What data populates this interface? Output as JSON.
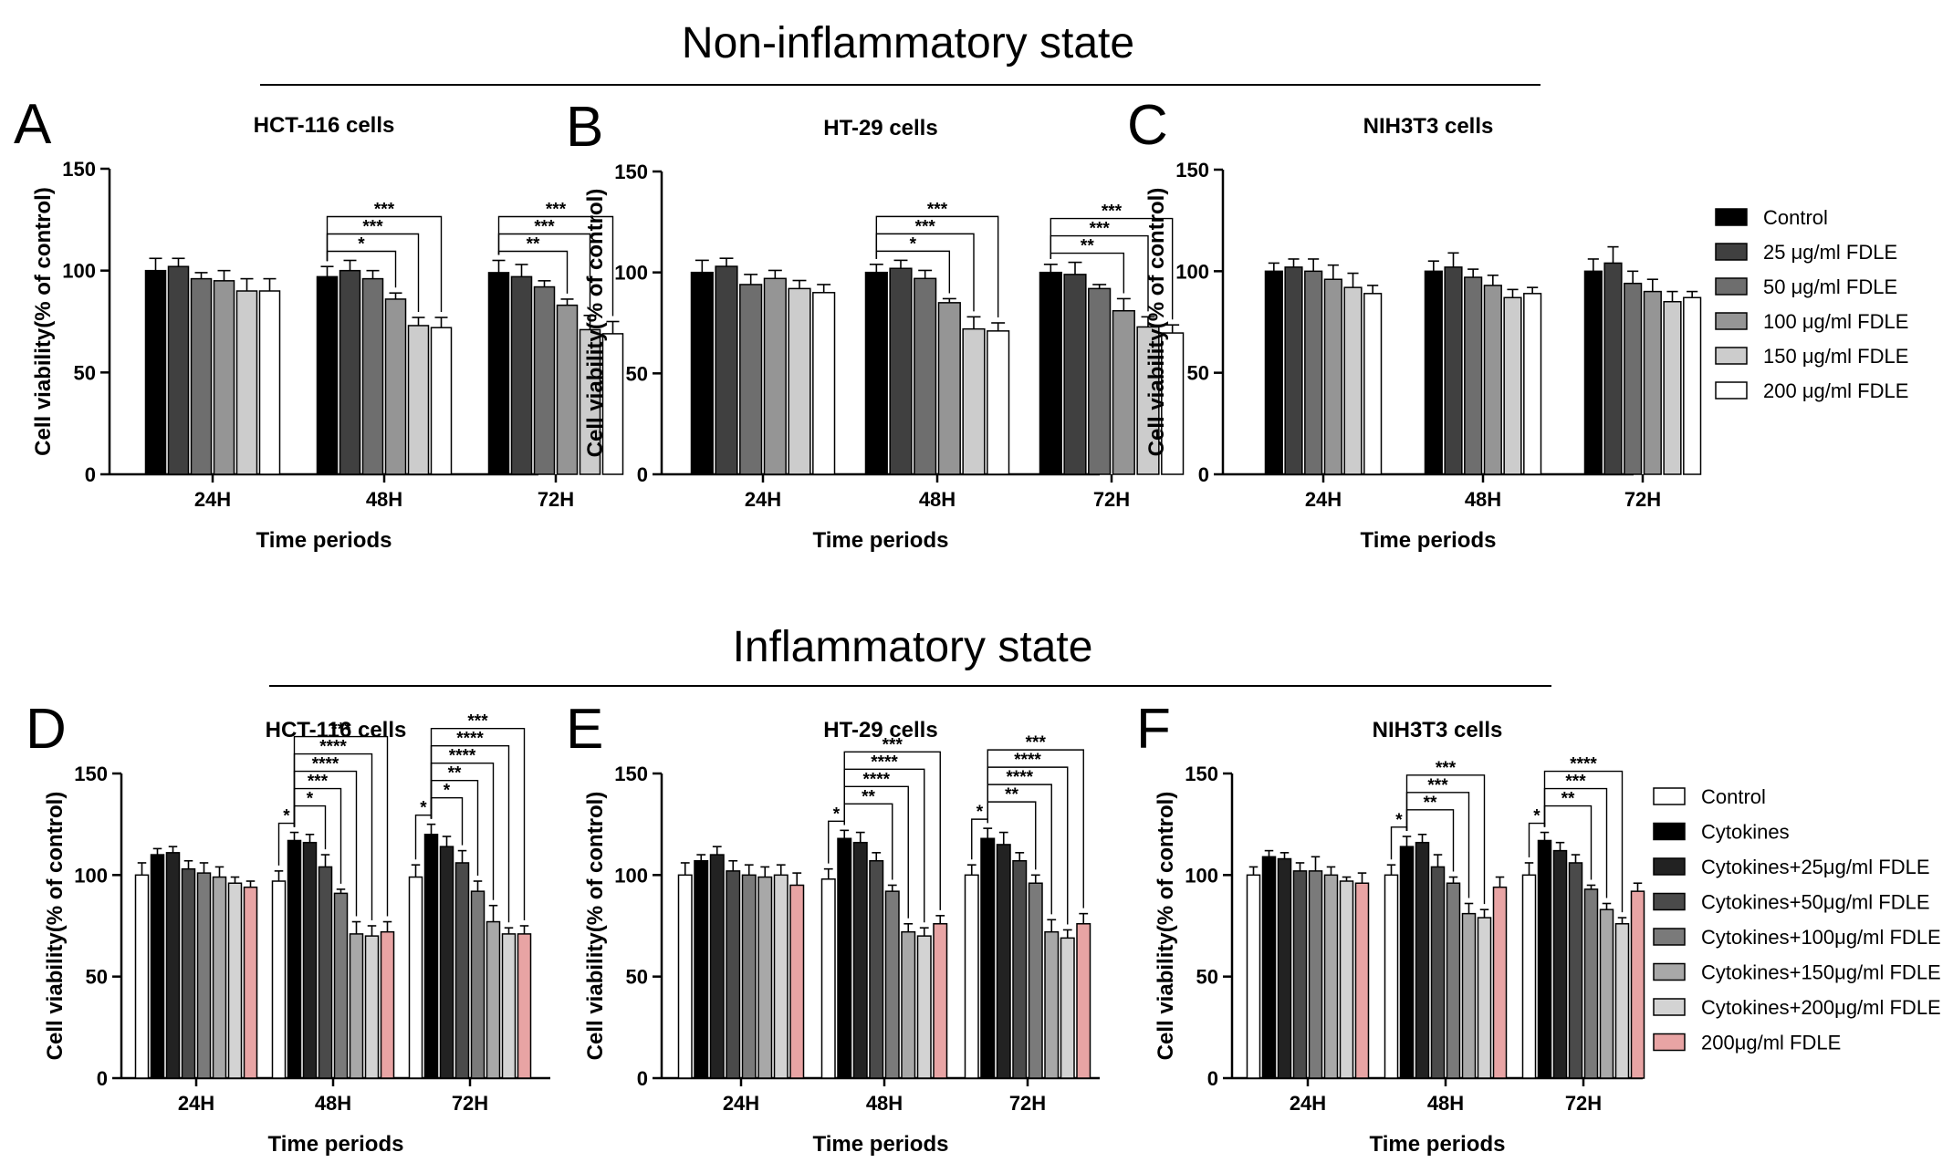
{
  "sections": [
    {
      "title": "Non-inflammatory state"
    },
    {
      "title": "Inflammatory state"
    }
  ],
  "legends": [
    {
      "entries": [
        {
          "label": "Control",
          "color": "#000000"
        },
        {
          "label": "25 μg/ml FDLE",
          "color": "#404040"
        },
        {
          "label": "50 μg/ml FDLE",
          "color": "#6e6e6e"
        },
        {
          "label": "100 μg/ml FDLE",
          "color": "#959595"
        },
        {
          "label": "150 μg/ml FDLE",
          "color": "#cccccc"
        },
        {
          "label": "200 μg/ml FDLE",
          "color": "#ffffff"
        }
      ]
    },
    {
      "entries": [
        {
          "label": "Control",
          "color": "#ffffff"
        },
        {
          "label": "Cytokines",
          "color": "#000000"
        },
        {
          "label": "Cytokines+25μg/ml FDLE",
          "color": "#222222"
        },
        {
          "label": "Cytokines+50μg/ml FDLE",
          "color": "#4a4a4a"
        },
        {
          "label": "Cytokines+100μg/ml FDLE",
          "color": "#7a7a7a"
        },
        {
          "label": "Cytokines+150μg/ml FDLE",
          "color": "#a8a8a8"
        },
        {
          "label": "Cytokines+200μg/ml FDLE",
          "color": "#d3d3d3"
        },
        {
          "label": "200μg/ml FDLE",
          "color": "#e8a4a4"
        }
      ]
    }
  ],
  "chart_data": [
    {
      "type": "bar",
      "letter": "A",
      "title": "HCT-116 cells",
      "xlabel": "Time periods",
      "ylabel": "Cell viability(% of control)",
      "ylim": [
        0,
        150
      ],
      "yticks": [
        0,
        50,
        100,
        150
      ],
      "categories": [
        "24H",
        "48H",
        "72H"
      ],
      "series": [
        {
          "name": "Control",
          "values": [
            100,
            97,
            99
          ],
          "errors": [
            6,
            5,
            6
          ]
        },
        {
          "name": "25 μg/ml FDLE",
          "values": [
            102,
            100,
            97
          ],
          "errors": [
            4,
            5,
            6
          ]
        },
        {
          "name": "50 μg/ml FDLE",
          "values": [
            96,
            96,
            92
          ],
          "errors": [
            3,
            4,
            3
          ]
        },
        {
          "name": "100 μg/ml FDLE",
          "values": [
            95,
            86,
            83
          ],
          "errors": [
            5,
            3,
            3
          ]
        },
        {
          "name": "150 μg/ml FDLE",
          "values": [
            90,
            73,
            71
          ],
          "errors": [
            6,
            4,
            7
          ]
        },
        {
          "name": "200 μg/ml FDLE",
          "values": [
            90,
            72,
            69
          ],
          "errors": [
            6,
            5,
            6
          ]
        }
      ],
      "significance": [
        {
          "group": 1,
          "to": 3,
          "label": "*"
        },
        {
          "group": 1,
          "to": 4,
          "label": "***"
        },
        {
          "group": 1,
          "to": 5,
          "label": "***"
        },
        {
          "group": 2,
          "to": 3,
          "label": "**"
        },
        {
          "group": 2,
          "to": 4,
          "label": "***"
        },
        {
          "group": 2,
          "to": 5,
          "label": "***"
        }
      ]
    },
    {
      "type": "bar",
      "letter": "B",
      "title": "HT-29 cells",
      "xlabel": "Time periods",
      "ylabel": "Cell viability(% of control)",
      "ylim": [
        0,
        150
      ],
      "yticks": [
        0,
        50,
        100,
        150
      ],
      "categories": [
        "24H",
        "48H",
        "72H"
      ],
      "series": [
        {
          "name": "Control",
          "values": [
            100,
            100,
            100
          ],
          "errors": [
            6,
            4,
            4
          ]
        },
        {
          "name": "25 μg/ml FDLE",
          "values": [
            103,
            102,
            99
          ],
          "errors": [
            4,
            4,
            6
          ]
        },
        {
          "name": "50 μg/ml FDLE",
          "values": [
            94,
            97,
            92
          ],
          "errors": [
            5,
            4,
            2
          ]
        },
        {
          "name": "100 μg/ml FDLE",
          "values": [
            97,
            85,
            81
          ],
          "errors": [
            4,
            2,
            6
          ]
        },
        {
          "name": "150 μg/ml FDLE",
          "values": [
            92,
            72,
            73
          ],
          "errors": [
            4,
            6,
            5
          ]
        },
        {
          "name": "200 μg/ml FDLE",
          "values": [
            90,
            71,
            70
          ],
          "errors": [
            4,
            4,
            4
          ]
        }
      ],
      "significance": [
        {
          "group": 1,
          "to": 3,
          "label": "*"
        },
        {
          "group": 1,
          "to": 4,
          "label": "***"
        },
        {
          "group": 1,
          "to": 5,
          "label": "***"
        },
        {
          "group": 2,
          "to": 3,
          "label": "**"
        },
        {
          "group": 2,
          "to": 4,
          "label": "***"
        },
        {
          "group": 2,
          "to": 5,
          "label": "***"
        }
      ]
    },
    {
      "type": "bar",
      "letter": "C",
      "title": "NIH3T3 cells",
      "xlabel": "Time periods",
      "ylabel": "Cell viability(% of control)",
      "ylim": [
        0,
        150
      ],
      "yticks": [
        0,
        50,
        100,
        150
      ],
      "categories": [
        "24H",
        "48H",
        "72H"
      ],
      "legend": 0,
      "legend_placement": "right",
      "series": [
        {
          "name": "Control",
          "values": [
            100,
            100,
            100
          ],
          "errors": [
            4,
            5,
            6
          ]
        },
        {
          "name": "25 μg/ml FDLE",
          "values": [
            102,
            102,
            104
          ],
          "errors": [
            4,
            7,
            8
          ]
        },
        {
          "name": "50 μg/ml FDLE",
          "values": [
            100,
            97,
            94
          ],
          "errors": [
            6,
            4,
            6
          ]
        },
        {
          "name": "100 μg/ml FDLE",
          "values": [
            96,
            93,
            90
          ],
          "errors": [
            7,
            5,
            6
          ]
        },
        {
          "name": "150 μg/ml FDLE",
          "values": [
            92,
            87,
            85
          ],
          "errors": [
            7,
            4,
            5
          ]
        },
        {
          "name": "200 μg/ml FDLE",
          "values": [
            89,
            89,
            87
          ],
          "errors": [
            4,
            3,
            3
          ]
        }
      ],
      "significance": []
    },
    {
      "type": "bar",
      "letter": "D",
      "title": "HCT-116 cells",
      "xlabel": "Time periods",
      "ylabel": "Cell viability(% of control)",
      "ylim": [
        0,
        150
      ],
      "yticks": [
        0,
        50,
        100,
        150
      ],
      "categories": [
        "24H",
        "48H",
        "72H"
      ],
      "series": [
        {
          "name": "Control",
          "values": [
            100,
            97,
            99
          ],
          "errors": [
            6,
            5,
            6
          ]
        },
        {
          "name": "Cytokines",
          "values": [
            110,
            117,
            120
          ],
          "errors": [
            3,
            4,
            5
          ]
        },
        {
          "name": "Cytokines+25μg/ml FDLE",
          "values": [
            111,
            116,
            114
          ],
          "errors": [
            3,
            4,
            5
          ]
        },
        {
          "name": "Cytokines+50μg/ml FDLE",
          "values": [
            103,
            104,
            106
          ],
          "errors": [
            4,
            6,
            6
          ]
        },
        {
          "name": "Cytokines+100μg/ml FDLE",
          "values": [
            101,
            91,
            92
          ],
          "errors": [
            5,
            2,
            5
          ]
        },
        {
          "name": "Cytokines+150μg/ml FDLE",
          "values": [
            99,
            71,
            77
          ],
          "errors": [
            5,
            6,
            8
          ]
        },
        {
          "name": "Cytokines+200μg/ml FDLE",
          "values": [
            96,
            70,
            71
          ],
          "errors": [
            3,
            5,
            3
          ]
        },
        {
          "name": "200μg/ml FDLE",
          "values": [
            94,
            72,
            71
          ],
          "errors": [
            3,
            5,
            4
          ]
        }
      ],
      "significance": [
        {
          "group": 1,
          "from": 0,
          "to": 1,
          "label": "*"
        },
        {
          "group": 1,
          "from": 1,
          "to": 3,
          "label": "*"
        },
        {
          "group": 1,
          "from": 1,
          "to": 4,
          "label": "***"
        },
        {
          "group": 1,
          "from": 1,
          "to": 5,
          "label": "****"
        },
        {
          "group": 1,
          "from": 1,
          "to": 6,
          "label": "****"
        },
        {
          "group": 1,
          "from": 1,
          "to": 7,
          "label": "***"
        },
        {
          "group": 2,
          "from": 0,
          "to": 1,
          "label": "*"
        },
        {
          "group": 2,
          "from": 1,
          "to": 3,
          "label": "*"
        },
        {
          "group": 2,
          "from": 1,
          "to": 4,
          "label": "**"
        },
        {
          "group": 2,
          "from": 1,
          "to": 5,
          "label": "****"
        },
        {
          "group": 2,
          "from": 1,
          "to": 6,
          "label": "****"
        },
        {
          "group": 2,
          "from": 1,
          "to": 7,
          "label": "***"
        }
      ]
    },
    {
      "type": "bar",
      "letter": "E",
      "title": "HT-29 cells",
      "xlabel": "Time periods",
      "ylabel": "Cell viability(% of control)",
      "ylim": [
        0,
        150
      ],
      "yticks": [
        0,
        50,
        100,
        150
      ],
      "categories": [
        "24H",
        "48H",
        "72H"
      ],
      "series": [
        {
          "name": "Control",
          "values": [
            100,
            98,
            100
          ],
          "errors": [
            6,
            5,
            5
          ]
        },
        {
          "name": "Cytokines",
          "values": [
            107,
            118,
            118
          ],
          "errors": [
            3,
            4,
            5
          ]
        },
        {
          "name": "Cytokines+25μg/ml FDLE",
          "values": [
            110,
            116,
            115
          ],
          "errors": [
            4,
            5,
            6
          ]
        },
        {
          "name": "Cytokines+50μg/ml FDLE",
          "values": [
            102,
            107,
            107
          ],
          "errors": [
            5,
            4,
            4
          ]
        },
        {
          "name": "Cytokines+100μg/ml FDLE",
          "values": [
            100,
            92,
            96
          ],
          "errors": [
            5,
            3,
            4
          ]
        },
        {
          "name": "Cytokines+150μg/ml FDLE",
          "values": [
            99,
            72,
            72
          ],
          "errors": [
            5,
            4,
            6
          ]
        },
        {
          "name": "Cytokines+200μg/ml FDLE",
          "values": [
            100,
            70,
            69
          ],
          "errors": [
            5,
            4,
            4
          ]
        },
        {
          "name": "200μg/ml FDLE",
          "values": [
            95,
            76,
            76
          ],
          "errors": [
            6,
            4,
            5
          ]
        }
      ],
      "significance": [
        {
          "group": 1,
          "from": 0,
          "to": 1,
          "label": "*"
        },
        {
          "group": 1,
          "from": 1,
          "to": 4,
          "label": "**"
        },
        {
          "group": 1,
          "from": 1,
          "to": 5,
          "label": "****"
        },
        {
          "group": 1,
          "from": 1,
          "to": 6,
          "label": "****"
        },
        {
          "group": 1,
          "from": 1,
          "to": 7,
          "label": "***"
        },
        {
          "group": 2,
          "from": 0,
          "to": 1,
          "label": "*"
        },
        {
          "group": 2,
          "from": 1,
          "to": 4,
          "label": "**"
        },
        {
          "group": 2,
          "from": 1,
          "to": 5,
          "label": "****"
        },
        {
          "group": 2,
          "from": 1,
          "to": 6,
          "label": "****"
        },
        {
          "group": 2,
          "from": 1,
          "to": 7,
          "label": "***"
        }
      ]
    },
    {
      "type": "bar",
      "letter": "F",
      "title": "NIH3T3 cells",
      "xlabel": "Time periods",
      "ylabel": "Cell viability(% of control)",
      "ylim": [
        0,
        150
      ],
      "yticks": [
        0,
        50,
        100,
        150
      ],
      "categories": [
        "24H",
        "48H",
        "72H"
      ],
      "legend": 1,
      "legend_placement": "right",
      "series": [
        {
          "name": "Control",
          "values": [
            100,
            100,
            100
          ],
          "errors": [
            4,
            5,
            6
          ]
        },
        {
          "name": "Cytokines",
          "values": [
            109,
            114,
            117
          ],
          "errors": [
            3,
            5,
            4
          ]
        },
        {
          "name": "Cytokines+25μg/ml FDLE",
          "values": [
            108,
            116,
            112
          ],
          "errors": [
            3,
            4,
            4
          ]
        },
        {
          "name": "Cytokines+50μg/ml FDLE",
          "values": [
            102,
            104,
            106
          ],
          "errors": [
            4,
            6,
            4
          ]
        },
        {
          "name": "Cytokines+100μg/ml FDLE",
          "values": [
            102,
            96,
            93
          ],
          "errors": [
            7,
            3,
            2
          ]
        },
        {
          "name": "Cytokines+150μg/ml FDLE",
          "values": [
            100,
            81,
            83
          ],
          "errors": [
            4,
            5,
            3
          ]
        },
        {
          "name": "Cytokines+200μg/ml FDLE",
          "values": [
            97,
            79,
            76
          ],
          "errors": [
            2,
            4,
            3
          ]
        },
        {
          "name": "200μg/ml FDLE",
          "values": [
            96,
            94,
            92
          ],
          "errors": [
            5,
            5,
            4
          ]
        }
      ],
      "significance": [
        {
          "group": 1,
          "from": 0,
          "to": 1,
          "label": "*"
        },
        {
          "group": 1,
          "from": 1,
          "to": 4,
          "label": "**"
        },
        {
          "group": 1,
          "from": 1,
          "to": 5,
          "label": "***"
        },
        {
          "group": 1,
          "from": 1,
          "to": 6,
          "label": "***"
        },
        {
          "group": 2,
          "from": 0,
          "to": 1,
          "label": "*"
        },
        {
          "group": 2,
          "from": 1,
          "to": 4,
          "label": "**"
        },
        {
          "group": 2,
          "from": 1,
          "to": 5,
          "label": "***"
        },
        {
          "group": 2,
          "from": 1,
          "to": 6,
          "label": "****"
        }
      ]
    }
  ]
}
